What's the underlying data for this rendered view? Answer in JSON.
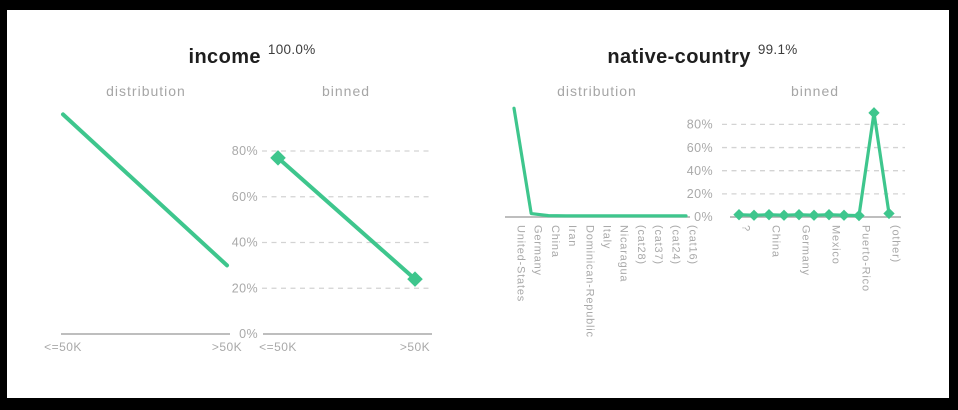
{
  "colors": {
    "accent_green": "#3ec68d",
    "frame_border": "#000000",
    "background": "#ffffff",
    "title_text": "#1e1e1e",
    "muted_label": "#a6a6a6"
  },
  "chart_data": [
    {
      "feature": "income",
      "coverage": "100.0%",
      "type": "line",
      "ylim": [
        0,
        100
      ],
      "grid": true,
      "legend": "none",
      "y_ticks": [
        "80%",
        "60%",
        "40%",
        "20%",
        "0%"
      ],
      "subcharts": [
        {
          "label": "distribution",
          "categories": [
            "<=50K",
            ">50K"
          ],
          "values": [
            96,
            30
          ],
          "markers": false,
          "y_axis_labeled": false
        },
        {
          "label": "binned",
          "categories": [
            "<=50K",
            ">50K"
          ],
          "values": [
            77,
            24
          ],
          "markers": true,
          "y_axis_labeled": true
        }
      ]
    },
    {
      "feature": "native-country",
      "coverage": "99.1%",
      "type": "line",
      "ylim": [
        0,
        100
      ],
      "grid": true,
      "legend": "none",
      "y_ticks": [
        "80%",
        "60%",
        "40%",
        "20%",
        "0%"
      ],
      "subcharts": [
        {
          "label": "distribution",
          "categories": [
            "United-States",
            "Germany",
            "China",
            "Iran",
            "Dominican-Republic",
            "Italy",
            "Nicaragua",
            "(cat28)",
            "(cat37)",
            "(cat24)",
            "(cat16)"
          ],
          "values": [
            94,
            3,
            1.2,
            1,
            1,
            1,
            1,
            1,
            1,
            1,
            1
          ],
          "markers": false,
          "y_axis_labeled": false
        },
        {
          "label": "binned",
          "categories": [
            "?",
            "",
            "China",
            "",
            "Germany",
            "",
            "Mexico",
            "",
            "Puerto-Rico",
            "",
            "(other)"
          ],
          "values": [
            2,
            1.5,
            2,
            1.5,
            2,
            1.5,
            2,
            1.5,
            1.2,
            90,
            3
          ],
          "markers": true,
          "y_axis_labeled": true
        }
      ]
    }
  ]
}
